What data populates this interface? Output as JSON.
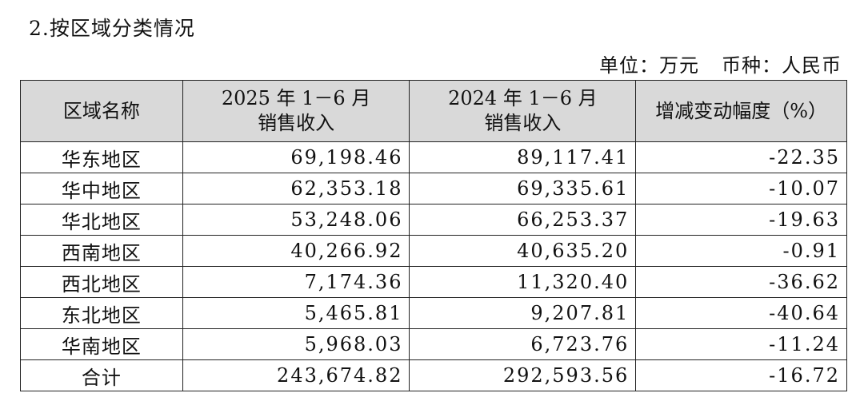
{
  "title": "2.按区域分类情况",
  "unit": "单位：万元",
  "currency": "币种：人民币",
  "table": {
    "header": [
      "区域名称",
      "2025 年 1－6 月\n销售收入",
      "2024 年 1－6 月\n销售收入",
      "增减变动幅度（%）"
    ],
    "rows": [
      [
        "华东地区",
        "69,198.46",
        "89,117.41",
        "-22.35"
      ],
      [
        "华中地区",
        "62,353.18",
        "69,335.61",
        "-10.07"
      ],
      [
        "华北地区",
        "53,248.06",
        "66,253.37",
        "-19.63"
      ],
      [
        "西南地区",
        "40,266.92",
        "40,635.20",
        "-0.91"
      ],
      [
        "西北地区",
        "7,174.36",
        "11,320.40",
        "-36.62"
      ],
      [
        "东北地区",
        "5,465.81",
        "9,207.81",
        "-40.64"
      ],
      [
        "华南地区",
        "5,968.03",
        "6,723.76",
        "-11.24"
      ],
      [
        "合计",
        "243,674.82",
        "292,593.56",
        "-16.72"
      ]
    ]
  }
}
